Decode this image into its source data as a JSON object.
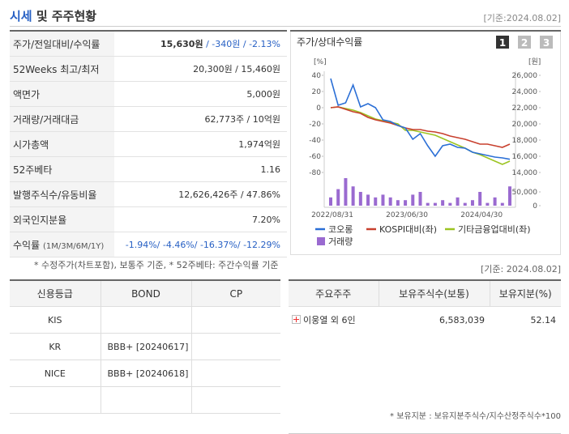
{
  "header": {
    "title_main": "시세",
    "title_rest": "및 주주현황",
    "date": "[기준:2024.08.02]"
  },
  "info": {
    "rows": [
      {
        "label": "주가/전일대비/수익률",
        "value": "15,630원",
        "change": "/ -340원 / -2.13%"
      },
      {
        "label": "52Weeks 최고/최저",
        "value": "20,300원 / 15,460원"
      },
      {
        "label": "액면가",
        "value": "5,000원"
      },
      {
        "label": "거래량/거래대금",
        "value": "62,773주 / 10억원"
      },
      {
        "label": "시가총액",
        "value": "1,974억원"
      },
      {
        "label": "52주베타",
        "value": "1.16"
      },
      {
        "label": "발행주식수/유동비율",
        "value": "12,626,426주 / 47.86%"
      },
      {
        "label": "외국인지분율",
        "value": "7.20%"
      },
      {
        "label": "수익률",
        "sub": "(1M/3M/6M/1Y)",
        "change": "-1.94%/ -4.46%/ -16.37%/ -12.29%"
      }
    ],
    "note": "* 수정주가(차트포함), 보통주 기준, * 52주베타: 주간수익률 기준"
  },
  "chart": {
    "type": "line",
    "title": "주가/상대수익률",
    "buttons": [
      "1",
      "2",
      "3"
    ],
    "y_unit": "[%]",
    "y2_unit": "[원]",
    "date_note": "[기준: 2024.08.02]",
    "categories": [
      "2022/08/31",
      null,
      null,
      null,
      null,
      null,
      null,
      null,
      null,
      null,
      "2023/06/30",
      null,
      null,
      null,
      null,
      null,
      null,
      null,
      null,
      null,
      "2024/04/30",
      null,
      null,
      null,
      null
    ],
    "series": [
      {
        "name": "코오롱",
        "color": "#2b6fd6",
        "axis": "y2",
        "values": [
          25600,
          22300,
          22600,
          24800,
          22100,
          22500,
          22000,
          20500,
          20300,
          19800,
          19500,
          18100,
          18800,
          17300,
          16000,
          17300,
          17500,
          17100,
          17000,
          16500,
          16300,
          16100,
          15900,
          15800,
          15630
        ]
      },
      {
        "name": "KOSPI대비(좌)",
        "color": "#c8402e",
        "values": [
          0,
          1,
          -2,
          -5,
          -7,
          -12,
          -15,
          -17,
          -19,
          -22,
          -25,
          -27,
          -27,
          -29,
          -30,
          -32,
          -35,
          -37,
          -39,
          -42,
          -45,
          -45,
          -47,
          -49,
          -45
        ]
      },
      {
        "name": "기타금융업대비(좌)",
        "color": "#9cc422",
        "values": [
          0,
          1,
          -1,
          -3,
          -6,
          -10,
          -14,
          -16,
          -18,
          -20,
          -28,
          -28,
          -30,
          -32,
          -34,
          -38,
          -42,
          -46,
          -50,
          -55,
          -58,
          -62,
          -66,
          -70,
          -66
        ]
      },
      {
        "name": "거래량",
        "color": "#9a6ad0",
        "axis": "volume",
        "values": [
          30000,
          60000,
          100000,
          70000,
          50000,
          40000,
          30000,
          40000,
          30000,
          20000,
          20000,
          40000,
          50000,
          10000,
          10000,
          20000,
          10000,
          30000,
          10000,
          20000,
          50000,
          10000,
          30000,
          10000,
          70000
        ]
      }
    ],
    "ylim": [
      -80,
      40
    ],
    "yticks": [
      40,
      20,
      0,
      -20,
      -40,
      -60,
      -80
    ],
    "y2lim": [
      14000,
      26000
    ],
    "y2ticks": [
      {
        "value": 26000,
        "label": "26,000"
      },
      {
        "value": 24000,
        "label": "24,000"
      },
      {
        "value": 22000,
        "label": "22,000"
      },
      {
        "value": 20000,
        "label": "20,000"
      },
      {
        "value": 18000,
        "label": "18,000"
      },
      {
        "value": 16000,
        "label": "16,000"
      },
      {
        "value": 14000,
        "label": "14,000"
      }
    ],
    "vlim": [
      0,
      50000
    ],
    "vticks": [
      {
        "value": 50000,
        "label": "50,000"
      },
      0
    ]
  },
  "credit": {
    "headers": {
      "agency": "신용등급",
      "bond": "BOND",
      "cp": "CP"
    },
    "rows": [
      {
        "agency": "KIS"
      },
      {
        "agency": "KR",
        "bond": "BBB+ [20240617]"
      },
      {
        "agency": "NICE",
        "bond": "BBB+ [20240618]"
      }
    ]
  },
  "holders": {
    "headers": {
      "name": "주요주주",
      "shares": "보유주식수(보통)",
      "pct": "보유지분(%)"
    },
    "rows": [
      {
        "name": "이웅열 외 6인",
        "shares": "6,583,039",
        "pct": "52.14"
      }
    ],
    "note": "* 보유지분 : 보유지분주식수/지수산정주식수*100"
  }
}
